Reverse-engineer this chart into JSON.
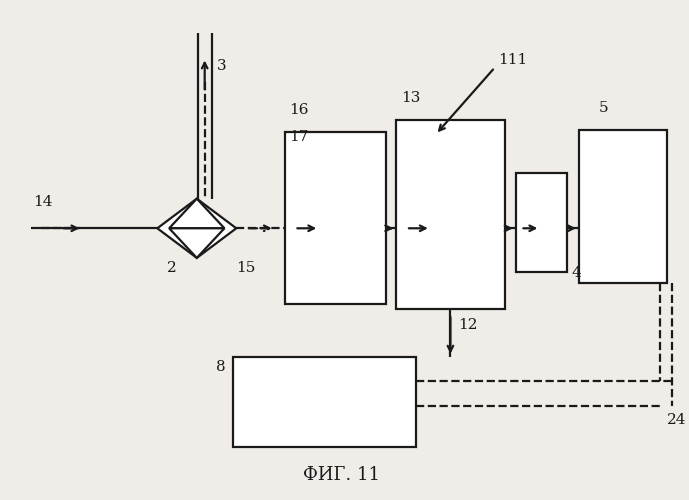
{
  "bg_color": "#f0ede8",
  "line_color": "#1a1a1a",
  "title": "ФИГ. 11",
  "title_fontsize": 13,
  "fig_w": 6.89,
  "fig_h": 5.0,
  "dpi": 100
}
